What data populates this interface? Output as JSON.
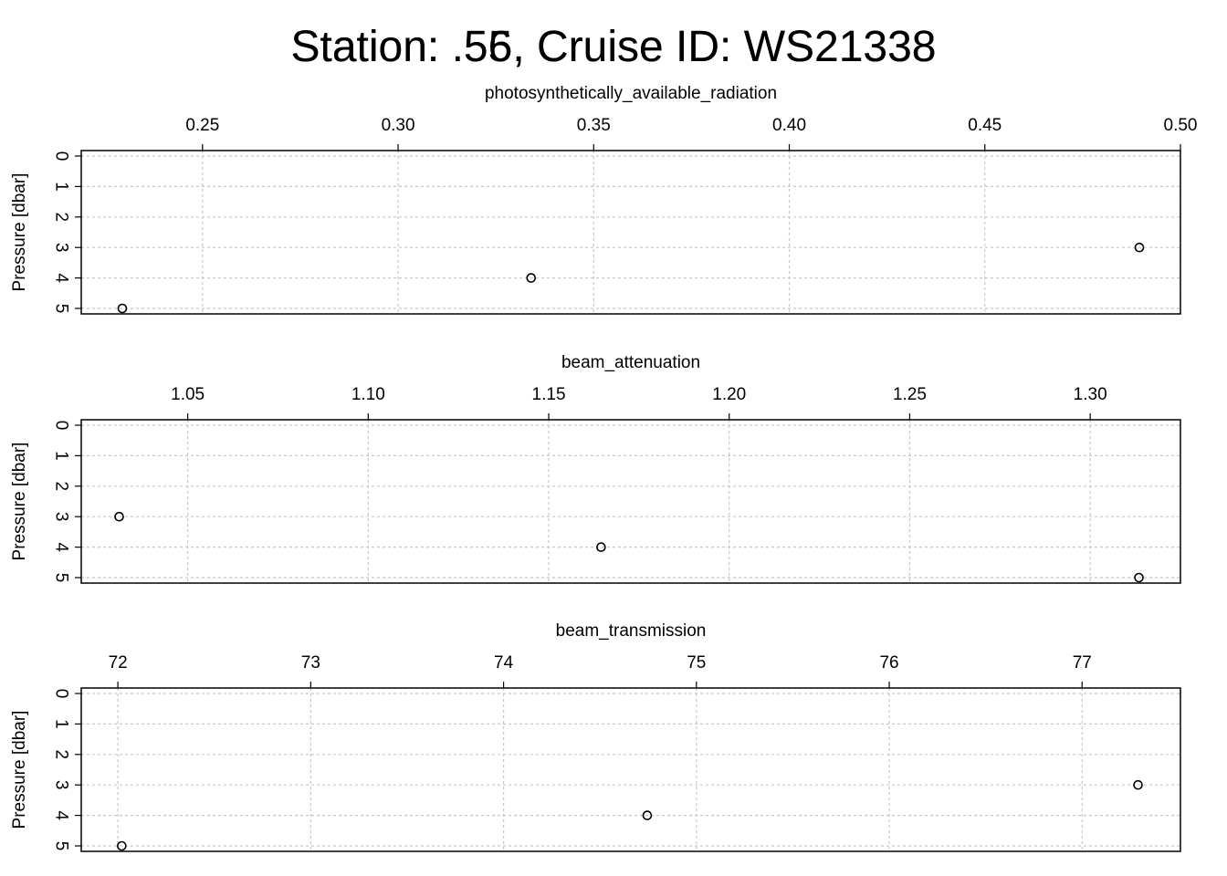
{
  "title_overlap": [
    "Station: .56, Cruise ID: WS21338",
    "Station: .55, Cruise ID: WS21338"
  ],
  "chart_data": [
    {
      "type": "scatter",
      "title": "photosynthetically_available_radiation",
      "xlabel": "photosynthetically_available_radiation",
      "ylabel": "Pressure [dbar]",
      "xlim": [
        0.219,
        0.5
      ],
      "ylim": [
        0,
        5
      ],
      "y_reversed": true,
      "x_ticks": [
        0.25,
        0.3,
        0.35,
        0.4,
        0.45,
        0.5
      ],
      "x_tick_labels": [
        "0.25",
        "0.30",
        "0.35",
        "0.40",
        "0.45",
        "0.50"
      ],
      "y_ticks": [
        0,
        1,
        2,
        3,
        4,
        5
      ],
      "grid": true,
      "series": [
        {
          "x": [
            0.4895,
            0.334,
            0.2295
          ],
          "y": [
            3,
            4,
            5
          ]
        }
      ]
    },
    {
      "type": "scatter",
      "title": "beam_attenuation",
      "xlabel": "beam_attenuation",
      "ylabel": "Pressure [dbar]",
      "xlim": [
        1.0205,
        1.325
      ],
      "ylim": [
        0,
        5
      ],
      "y_reversed": true,
      "x_ticks": [
        1.05,
        1.1,
        1.15,
        1.2,
        1.25,
        1.3
      ],
      "x_tick_labels": [
        "1.05",
        "1.10",
        "1.15",
        "1.20",
        "1.25",
        "1.30"
      ],
      "y_ticks": [
        0,
        1,
        2,
        3,
        4,
        5
      ],
      "grid": true,
      "series": [
        {
          "x": [
            1.031,
            1.1645,
            1.3135
          ],
          "y": [
            3,
            4,
            5
          ]
        }
      ]
    },
    {
      "type": "scatter",
      "title": "beam_transmission",
      "xlabel": "beam_transmission",
      "ylabel": "Pressure [dbar]",
      "xlim": [
        71.81,
        77.51
      ],
      "ylim": [
        0,
        5
      ],
      "y_reversed": true,
      "x_ticks": [
        72,
        73,
        74,
        75,
        76,
        77
      ],
      "x_tick_labels": [
        "72",
        "73",
        "74",
        "75",
        "76",
        "77"
      ],
      "y_ticks": [
        0,
        1,
        2,
        3,
        4,
        5
      ],
      "grid": true,
      "series": [
        {
          "x": [
            77.29,
            74.745,
            72.02
          ],
          "y": [
            3,
            4,
            5
          ]
        }
      ]
    }
  ]
}
